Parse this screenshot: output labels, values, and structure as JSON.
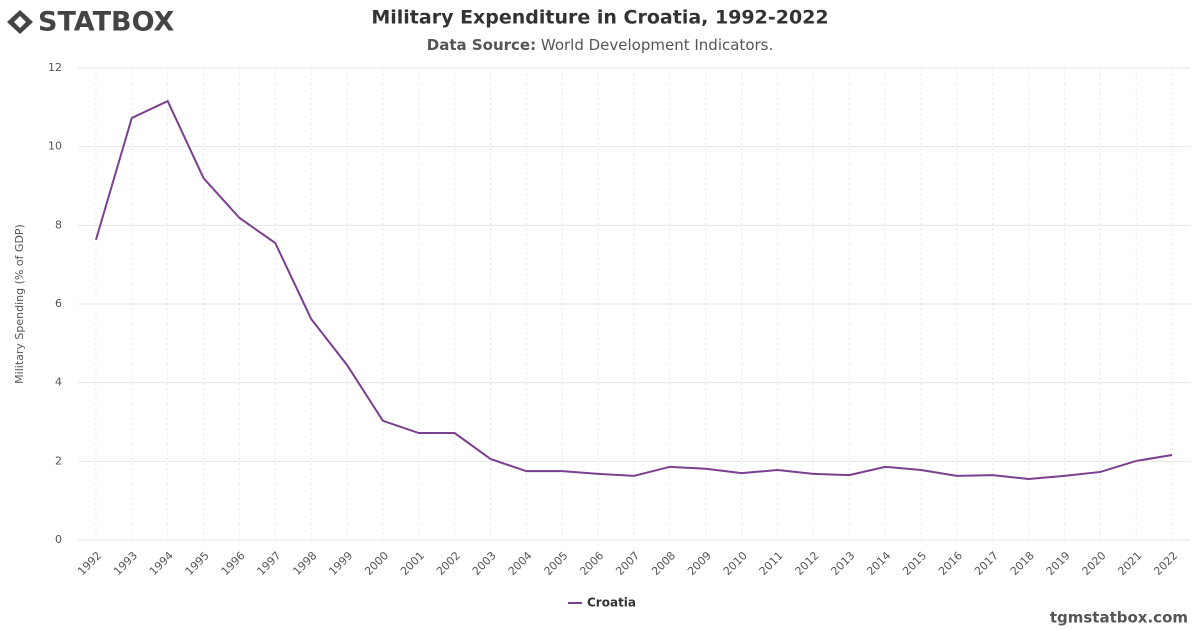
{
  "brand": "STATBOX",
  "footer": "tgmstatbox.com",
  "chart_data": {
    "type": "line",
    "title": "Military Expenditure in Croatia, 1992-2022",
    "subtitle_label": "Data Source:",
    "subtitle_text": "World Development Indicators.",
    "y_label": "Military Spending (% of GDP)",
    "x": [
      1992,
      1993,
      1994,
      1995,
      1996,
      1997,
      1998,
      1999,
      2000,
      2001,
      2002,
      2003,
      2004,
      2005,
      2006,
      2007,
      2008,
      2009,
      2010,
      2011,
      2012,
      2013,
      2014,
      2015,
      2016,
      2017,
      2018,
      2019,
      2020,
      2021,
      2022
    ],
    "xlim": [
      1991.5,
      2022.5
    ],
    "xticks": [
      1992,
      1993,
      1994,
      1995,
      1996,
      1997,
      1998,
      1999,
      2000,
      2001,
      2002,
      2003,
      2004,
      2005,
      2006,
      2007,
      2008,
      2009,
      2010,
      2011,
      2012,
      2013,
      2014,
      2015,
      2016,
      2017,
      2018,
      2019,
      2020,
      2021,
      2022
    ],
    "ylim": [
      0,
      12
    ],
    "yticks": [
      0,
      2,
      4,
      6,
      8,
      10,
      12
    ],
    "grid": true,
    "series": [
      {
        "name": "Croatia",
        "color": "#7b3f8f",
        "values": [
          7.63,
          10.73,
          11.16,
          9.2,
          8.19,
          7.55,
          5.62,
          4.45,
          3.03,
          2.72,
          2.72,
          2.06,
          1.75,
          1.75,
          1.68,
          1.63,
          1.86,
          1.81,
          1.7,
          1.78,
          1.68,
          1.65,
          1.86,
          1.78,
          1.63,
          1.65,
          1.55,
          1.63,
          1.73,
          2.01,
          2.16
        ]
      }
    ]
  }
}
